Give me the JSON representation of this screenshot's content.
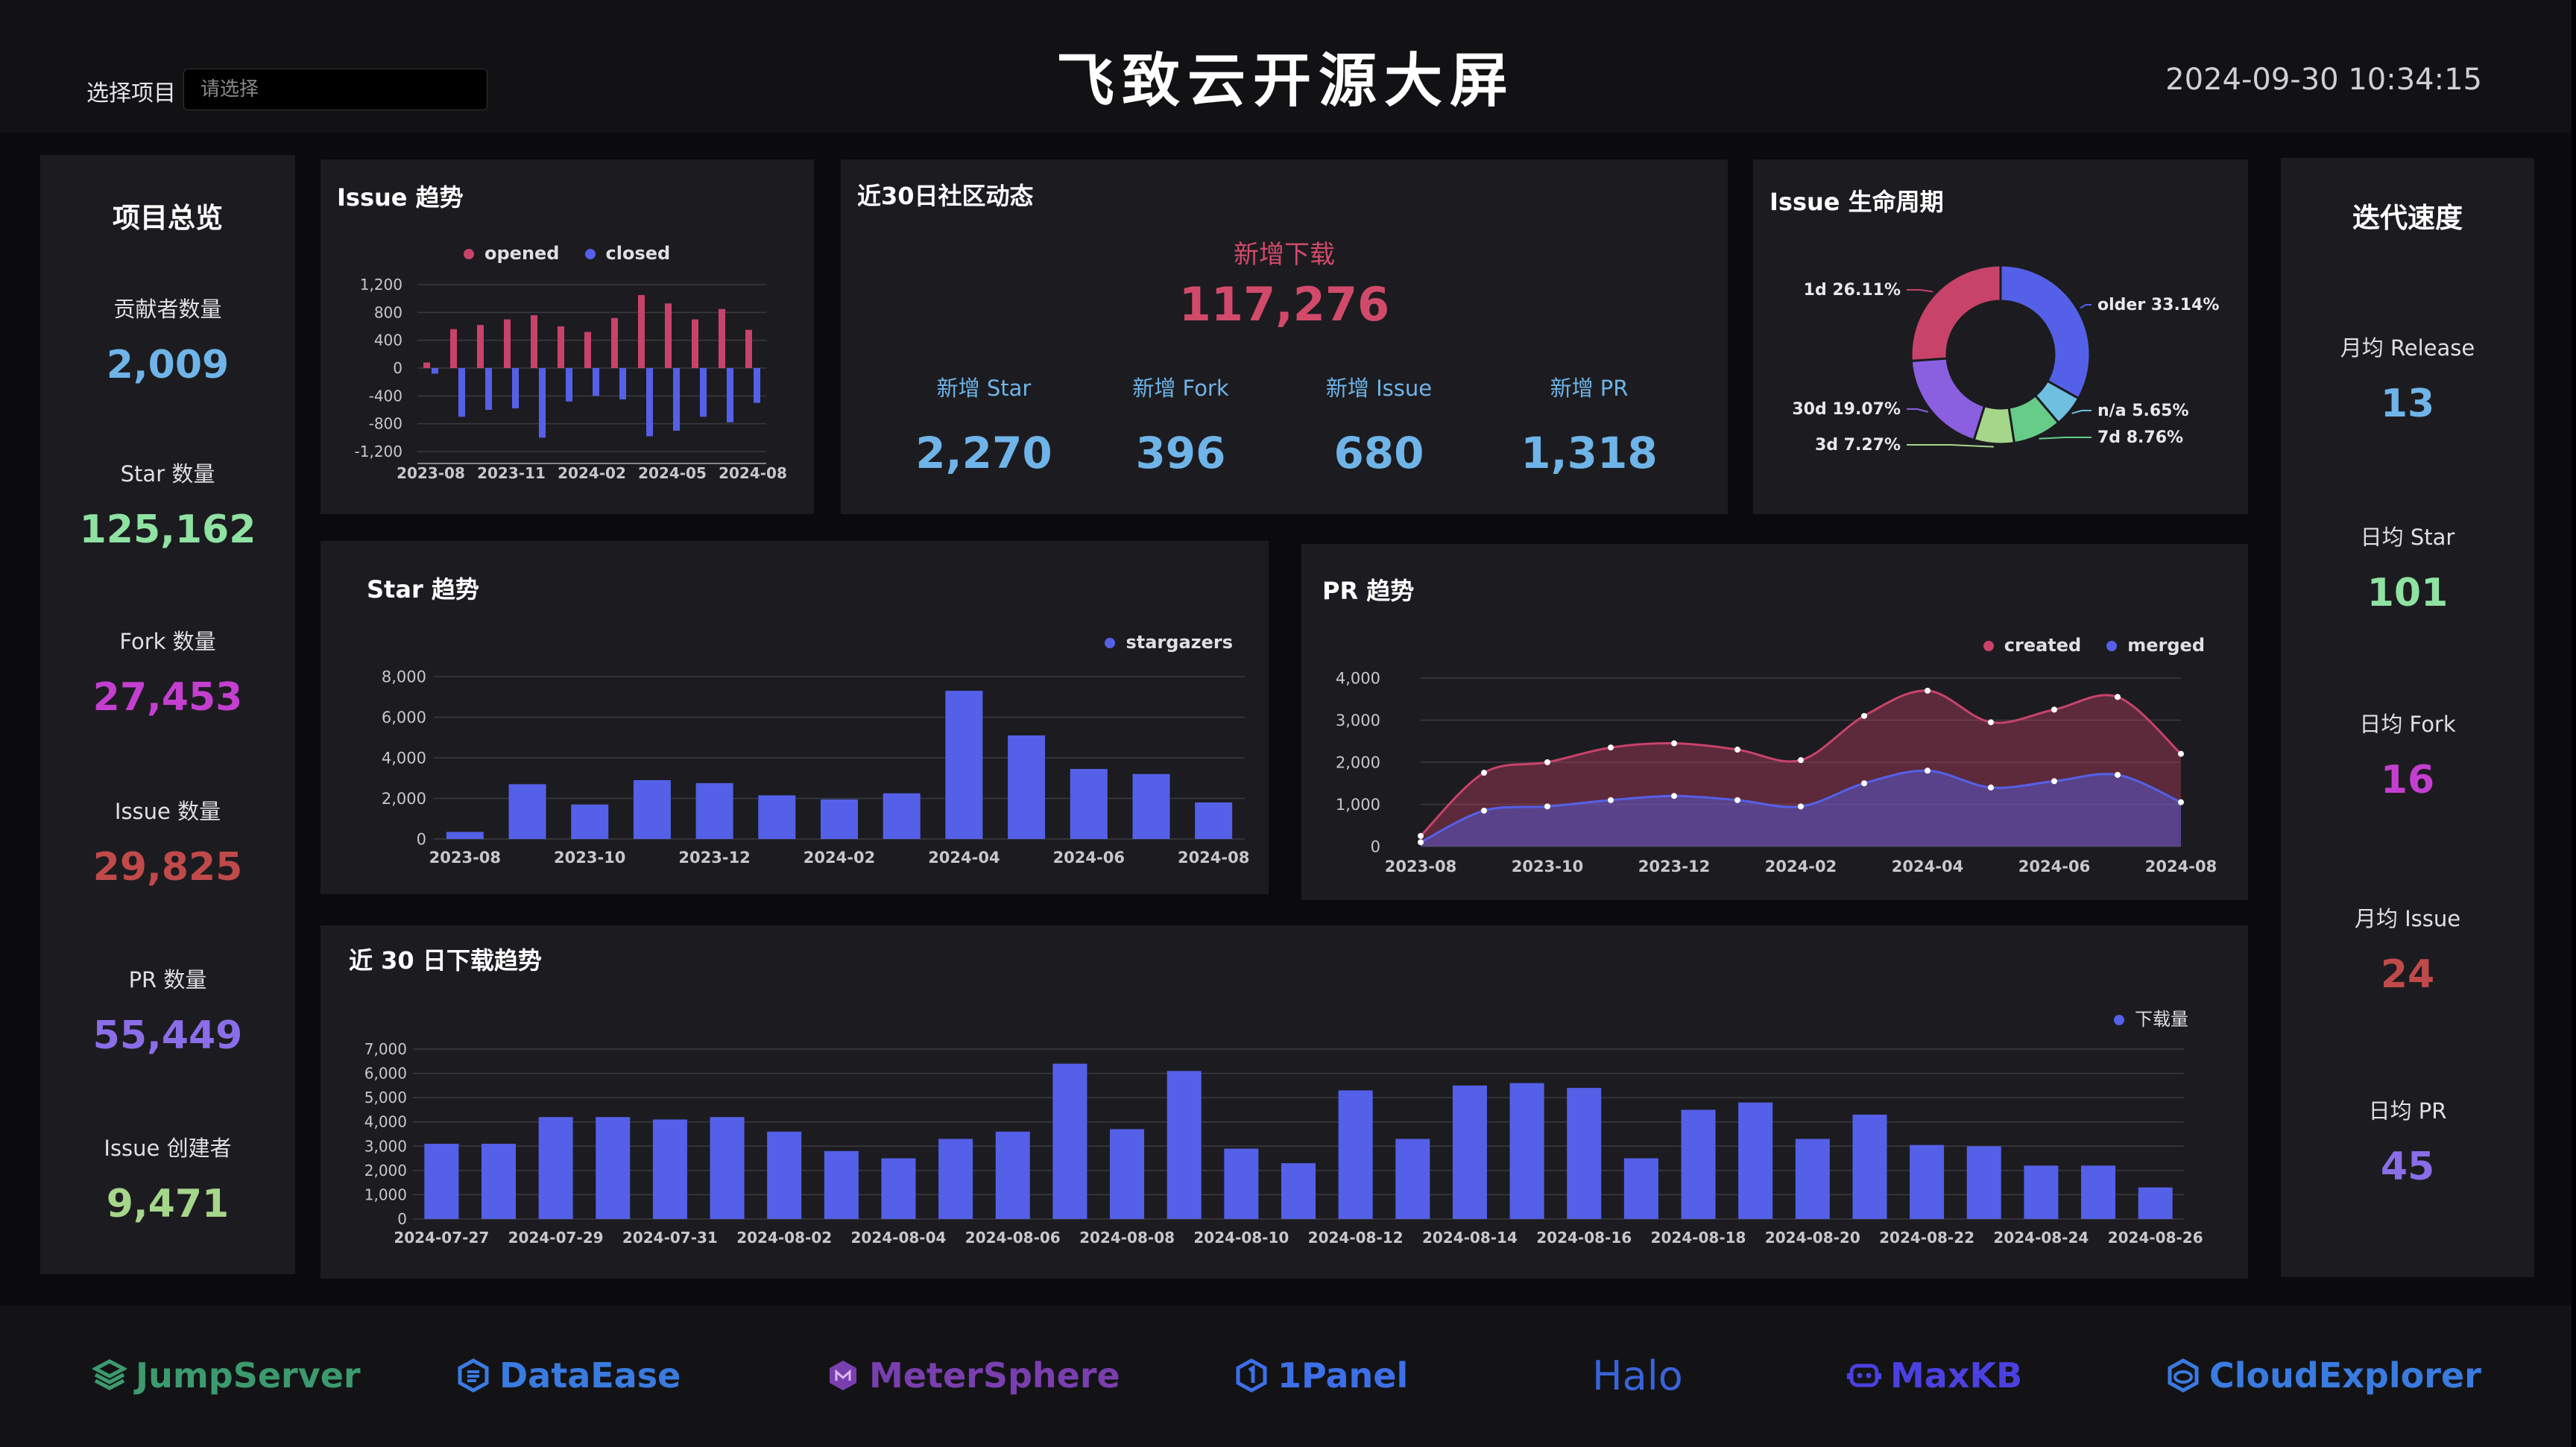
{
  "header": {
    "title": "飞致云开源大屏",
    "project_label": "选择项目",
    "project_placeholder": "请选择",
    "datetime": "2024-09-30 10:34:15"
  },
  "overview": {
    "title": "项目总览",
    "metrics": [
      {
        "label": "贡献者数量",
        "value": "2,009",
        "color": "#6fb4e8"
      },
      {
        "label": "Star 数量",
        "value": "125,162",
        "color": "#8fe2a2"
      },
      {
        "label": "Fork 数量",
        "value": "27,453",
        "color": "#c43fd0"
      },
      {
        "label": "Issue 数量",
        "value": "29,825",
        "color": "#c04a4a"
      },
      {
        "label": "PR 数量",
        "value": "55,449",
        "color": "#8a6ee8"
      },
      {
        "label": "Issue 创建者",
        "value": "9,471",
        "color": "#a6d68a"
      }
    ]
  },
  "velocity": {
    "title": "迭代速度",
    "metrics": [
      {
        "label": "月均 Release",
        "value": "13",
        "color": "#6fb4e8"
      },
      {
        "label": "日均 Star",
        "value": "101",
        "color": "#8fe2a2"
      },
      {
        "label": "日均 Fork",
        "value": "16",
        "color": "#c43fd0"
      },
      {
        "label": "月均 Issue",
        "value": "24",
        "color": "#c04a4a"
      },
      {
        "label": "日均 PR",
        "value": "45",
        "color": "#8a6ee8"
      }
    ]
  },
  "community": {
    "title": "近30日社区动态",
    "main_label": "新增下载",
    "main_value": "117,276",
    "items": [
      {
        "label": "新增 Star",
        "value": "2,270"
      },
      {
        "label": "新增 Fork",
        "value": "396"
      },
      {
        "label": "新增 Issue",
        "value": "680"
      },
      {
        "label": "新增 PR",
        "value": "1,318"
      }
    ]
  },
  "chart_data": [
    {
      "id": "issue-trend",
      "type": "bar",
      "title": "Issue 趋势",
      "categories": [
        "2023-08",
        "2023-09",
        "2023-10",
        "2023-11",
        "2023-12",
        "2024-01",
        "2024-02",
        "2024-03",
        "2024-04",
        "2024-05",
        "2024-06",
        "2024-07",
        "2024-08"
      ],
      "x_tick_labels": [
        "2023-08",
        "2023-11",
        "2024-02",
        "2024-05",
        "2024-08"
      ],
      "series": [
        {
          "name": "opened",
          "color": "#c8436a",
          "values": [
            80,
            560,
            620,
            700,
            760,
            600,
            520,
            720,
            1050,
            930,
            700,
            850,
            550
          ]
        },
        {
          "name": "closed",
          "color": "#5560e8",
          "values": [
            -80,
            -700,
            -600,
            -580,
            -1000,
            -480,
            -400,
            -450,
            -980,
            -900,
            -700,
            -780,
            -500
          ]
        }
      ],
      "ylim": [
        -1200,
        1200
      ],
      "y_ticks": [
        "1,200",
        "800",
        "400",
        "0",
        "-400",
        "-800",
        "-1,200"
      ],
      "legend": "top"
    },
    {
      "id": "issue-lifecycle",
      "type": "pie",
      "title": "Issue 生命周期",
      "labels": [
        "older",
        "n/a",
        "7d",
        "3d",
        "30d",
        "1d"
      ],
      "values": [
        33.14,
        5.65,
        8.76,
        7.27,
        19.07,
        26.11
      ],
      "slice_labels": [
        "older 33.14%",
        "n/a 5.65%",
        "7d 8.76%",
        "3d 7.27%",
        "30d 19.07%",
        "1d 26.11%"
      ],
      "colors": [
        "#5560e8",
        "#6fbfe0",
        "#66cc88",
        "#a6d68a",
        "#8a5fe0",
        "#c8436a"
      ]
    },
    {
      "id": "star-trend",
      "type": "bar",
      "title": "Star 趋势",
      "categories": [
        "2023-08",
        "2023-09",
        "2023-10",
        "2023-11",
        "2023-12",
        "2024-01",
        "2024-02",
        "2024-03",
        "2024-04",
        "2024-05",
        "2024-06",
        "2024-07",
        "2024-08"
      ],
      "x_tick_labels": [
        "2023-08",
        "2023-10",
        "2023-12",
        "2024-02",
        "2024-04",
        "2024-06",
        "2024-08"
      ],
      "series": [
        {
          "name": "stargazers",
          "color": "#5560e8",
          "values": [
            350,
            2700,
            1700,
            2900,
            2750,
            2150,
            1950,
            2250,
            7300,
            5100,
            3450,
            3200,
            1800
          ]
        }
      ],
      "ylim": [
        0,
        8000
      ],
      "y_ticks": [
        "8,000",
        "6,000",
        "4,000",
        "2,000",
        "0"
      ],
      "legend": "top-right"
    },
    {
      "id": "pr-trend",
      "type": "area",
      "title": "PR 趋势",
      "categories": [
        "2023-08",
        "2023-09",
        "2023-10",
        "2023-11",
        "2023-12",
        "2024-01",
        "2024-02",
        "2024-03",
        "2024-04",
        "2024-05",
        "2024-06",
        "2024-07",
        "2024-08"
      ],
      "x_tick_labels": [
        "2023-08",
        "2023-10",
        "2023-12",
        "2024-02",
        "2024-04",
        "2024-06",
        "2024-08"
      ],
      "series": [
        {
          "name": "created",
          "color": "#c8436a",
          "values": [
            250,
            1750,
            2000,
            2350,
            2450,
            2300,
            2050,
            3100,
            3700,
            2950,
            3250,
            3550,
            2200
          ]
        },
        {
          "name": "merged",
          "color": "#5560e8",
          "values": [
            100,
            850,
            950,
            1100,
            1200,
            1100,
            950,
            1500,
            1800,
            1400,
            1550,
            1700,
            1050
          ]
        }
      ],
      "ylim": [
        0,
        4000
      ],
      "y_ticks": [
        "4,000",
        "3,000",
        "2,000",
        "1,000",
        "0"
      ],
      "legend": "top-right"
    },
    {
      "id": "download-trend",
      "type": "bar",
      "title": "近 30 日下载趋势",
      "categories": [
        "2024-07-27",
        "2024-07-28",
        "2024-07-29",
        "2024-07-30",
        "2024-07-31",
        "2024-08-01",
        "2024-08-02",
        "2024-08-03",
        "2024-08-04",
        "2024-08-05",
        "2024-08-06",
        "2024-08-07",
        "2024-08-08",
        "2024-08-09",
        "2024-08-10",
        "2024-08-11",
        "2024-08-12",
        "2024-08-13",
        "2024-08-14",
        "2024-08-15",
        "2024-08-16",
        "2024-08-17",
        "2024-08-18",
        "2024-08-19",
        "2024-08-20",
        "2024-08-21",
        "2024-08-22",
        "2024-08-23",
        "2024-08-24",
        "2024-08-25",
        "2024-08-26"
      ],
      "x_tick_labels": [
        "2024-07-27",
        "2024-07-29",
        "2024-07-31",
        "2024-08-02",
        "2024-08-04",
        "2024-08-06",
        "2024-08-08",
        "2024-08-10",
        "2024-08-12",
        "2024-08-14",
        "2024-08-16",
        "2024-08-18",
        "2024-08-20",
        "2024-08-22",
        "2024-08-24",
        "2024-08-26"
      ],
      "series": [
        {
          "name": "下载量",
          "color": "#5560e8",
          "values": [
            3100,
            3100,
            4200,
            4200,
            4100,
            4200,
            3600,
            2800,
            2500,
            3300,
            3600,
            6400,
            3700,
            6100,
            2900,
            2300,
            5300,
            3300,
            5500,
            5600,
            5400,
            2500,
            4500,
            4800,
            3300,
            4300,
            3050,
            3000,
            2200,
            2200,
            1300
          ]
        }
      ],
      "ylim": [
        0,
        7000
      ],
      "y_ticks": [
        "7,000",
        "6,000",
        "5,000",
        "4,000",
        "3,000",
        "2,000",
        "1,000",
        "0"
      ],
      "legend": "top-right"
    }
  ],
  "footer": {
    "logos": [
      {
        "name": "JumpServer",
        "icon": "jumpserver-icon",
        "color": "#3c9a6e"
      },
      {
        "name": "DataEase",
        "icon": "dataease-icon",
        "color": "#3a7be0"
      },
      {
        "name": "MeterSphere",
        "icon": "metersphere-icon",
        "color": "#7a3fae"
      },
      {
        "name": "1Panel",
        "icon": "onepanel-icon",
        "color": "#3d6fe8"
      },
      {
        "name": "Halo",
        "icon": "halo-icon",
        "color": "#3a63d8"
      },
      {
        "name": "MaxKB",
        "icon": "maxkb-icon",
        "color": "#4b40e0"
      },
      {
        "name": "CloudExplorer",
        "icon": "cloudexplorer-icon",
        "color": "#3a7be0"
      }
    ]
  }
}
